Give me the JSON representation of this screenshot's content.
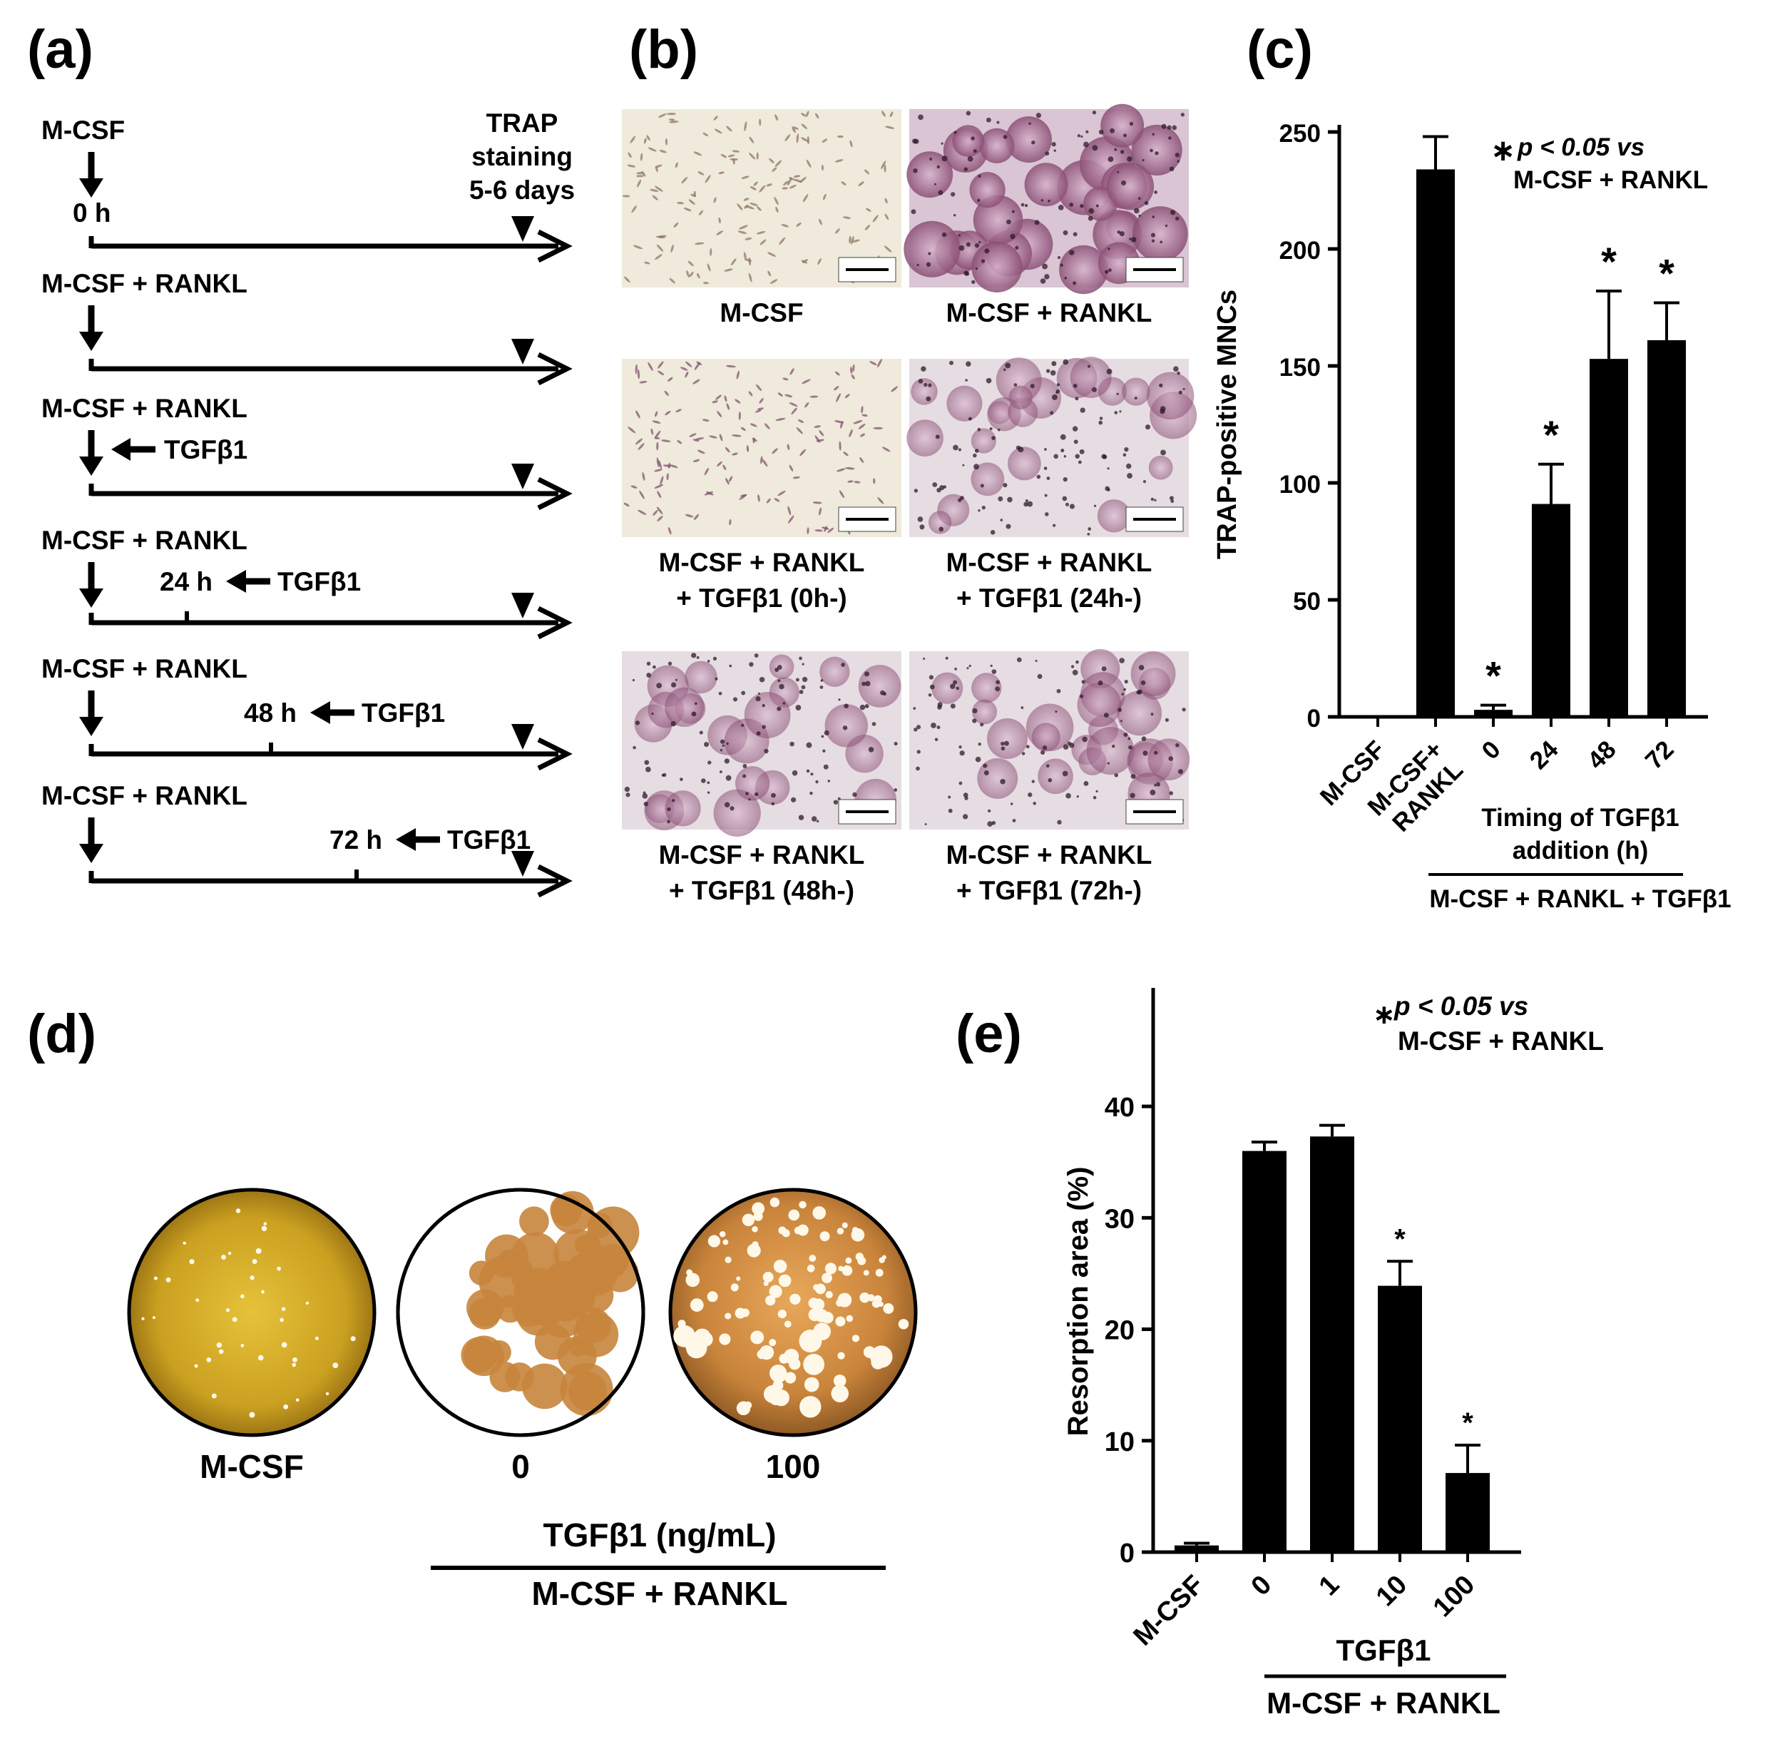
{
  "panels": {
    "a": {
      "letter": "(a)",
      "trap_label": [
        "TRAP",
        "staining",
        "5-6 days"
      ],
      "start_label": "0 h",
      "rows": [
        {
          "condition": "M-CSF",
          "tgf_time": null,
          "tgf_label": ""
        },
        {
          "condition": "M-CSF + RANKL",
          "tgf_time": null,
          "tgf_label": ""
        },
        {
          "condition": "M-CSF + RANKL",
          "tgf_time": "0",
          "tgf_label": "TGFβ1"
        },
        {
          "condition": "M-CSF + RANKL",
          "tgf_time": "24 h",
          "tgf_label": "TGFβ1"
        },
        {
          "condition": "M-CSF + RANKL",
          "tgf_time": "48 h",
          "tgf_label": "TGFβ1"
        },
        {
          "condition": "M-CSF + RANKL",
          "tgf_time": "72 h",
          "tgf_label": "TGFβ1"
        }
      ]
    },
    "b": {
      "letter": "(b)",
      "images": [
        {
          "caption": [
            "M-CSF"
          ],
          "style": "sparse"
        },
        {
          "caption": [
            "M-CSF + RANKL"
          ],
          "style": "dense"
        },
        {
          "caption": [
            "M-CSF + RANKL",
            "+ TGFβ1 (0h-)"
          ],
          "style": "sparse"
        },
        {
          "caption": [
            "M-CSF + RANKL",
            "+ TGFβ1 (24h-)"
          ],
          "style": "medium"
        },
        {
          "caption": [
            "M-CSF + RANKL",
            "+ TGFβ1 (48h-)"
          ],
          "style": "medium"
        },
        {
          "caption": [
            "M-CSF + RANKL",
            "+ TGFβ1 (72h-)"
          ],
          "style": "medium"
        }
      ]
    },
    "c": {
      "letter": "(c)",
      "stat_note": [
        "p < 0.05 vs",
        "M-CSF + RANKL"
      ],
      "x_group_label": [
        "Timing of TGFβ1",
        "addition (h)"
      ],
      "x_bracket_label": "M-CSF + RANKL + TGFβ1"
    },
    "d": {
      "letter": "(d)",
      "wells": [
        {
          "label": "M-CSF",
          "style": "intact"
        },
        {
          "label": "0",
          "style": "resorbed"
        },
        {
          "label": "100",
          "style": "partial"
        }
      ],
      "x_group_label": "TGFβ1 (ng/mL)",
      "x_bracket_label": "M-CSF + RANKL"
    },
    "e": {
      "letter": "(e)",
      "stat_note": [
        "p < 0.05 vs",
        "M-CSF + RANKL"
      ],
      "x_group_label": "TGFβ1",
      "x_bracket_label": "M-CSF + RANKL"
    }
  },
  "chart_data": [
    {
      "id": "c",
      "type": "bar",
      "categories": [
        "M-CSF",
        "M-CSF+ RANKL",
        "0",
        "24",
        "48",
        "72"
      ],
      "values": [
        0,
        234,
        3,
        91,
        153,
        161
      ],
      "errors": [
        0,
        14,
        2,
        17,
        29,
        16
      ],
      "significant": [
        false,
        false,
        true,
        true,
        true,
        true
      ],
      "ylabel": "TRAP-positive MNCs",
      "ylim": [
        0,
        250
      ],
      "yticks": [
        0,
        50,
        100,
        150,
        200,
        250
      ],
      "bar_color": "#000000"
    },
    {
      "id": "e",
      "type": "bar",
      "categories": [
        "M-CSF",
        "0",
        "1",
        "10",
        "100"
      ],
      "values": [
        0.6,
        36,
        37.3,
        23.9,
        7.1
      ],
      "errors": [
        0.2,
        0.8,
        1.0,
        2.2,
        2.5
      ],
      "significant": [
        false,
        false,
        false,
        true,
        true
      ],
      "ylabel": "Resorption area (%)",
      "ylim": [
        0,
        45
      ],
      "yticks": [
        0,
        10,
        20,
        30,
        40
      ],
      "bar_color": "#000000"
    }
  ]
}
